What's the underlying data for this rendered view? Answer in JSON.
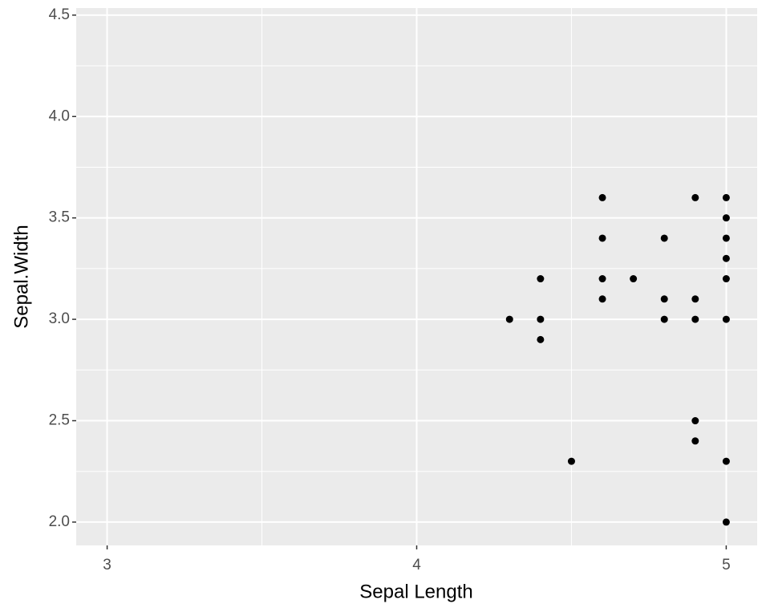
{
  "chart_data": {
    "type": "scatter",
    "x_label": "Sepal Length",
    "y_label": "Sepal.Width",
    "x": [
      4.3,
      4.4,
      4.4,
      4.4,
      4.5,
      4.6,
      4.6,
      4.6,
      4.6,
      4.7,
      4.8,
      4.8,
      4.8,
      4.9,
      4.9,
      4.9,
      4.9,
      4.9,
      5.0,
      5.0,
      5.0,
      5.0,
      5.0,
      5.0,
      5.0,
      5.0
    ],
    "y": [
      3.0,
      3.2,
      3.0,
      2.9,
      2.3,
      3.6,
      3.4,
      3.2,
      3.1,
      3.2,
      3.4,
      3.1,
      3.0,
      3.6,
      3.1,
      3.0,
      2.5,
      2.4,
      3.6,
      3.5,
      3.4,
      3.3,
      3.2,
      3.0,
      2.3,
      2.0
    ],
    "color": "#000000",
    "xlim": [
      2.9,
      5.1
    ],
    "ylim": [
      1.885,
      4.535
    ],
    "xticks": [
      3,
      4,
      5
    ],
    "yticks": [
      {
        "value": 2.0,
        "label": "2.0"
      },
      {
        "value": 2.5,
        "label": "2.5"
      },
      {
        "value": 3.0,
        "label": "3.0"
      },
      {
        "value": 3.5,
        "label": "3.5"
      },
      {
        "value": 4.0,
        "label": "4.0"
      },
      {
        "value": 4.5,
        "label": "4.5"
      }
    ],
    "x_minor_grid": [
      3.5,
      4.5
    ],
    "y_minor_grid": [
      2.25,
      2.75,
      3.25,
      3.75,
      4.25
    ],
    "grid": true
  }
}
